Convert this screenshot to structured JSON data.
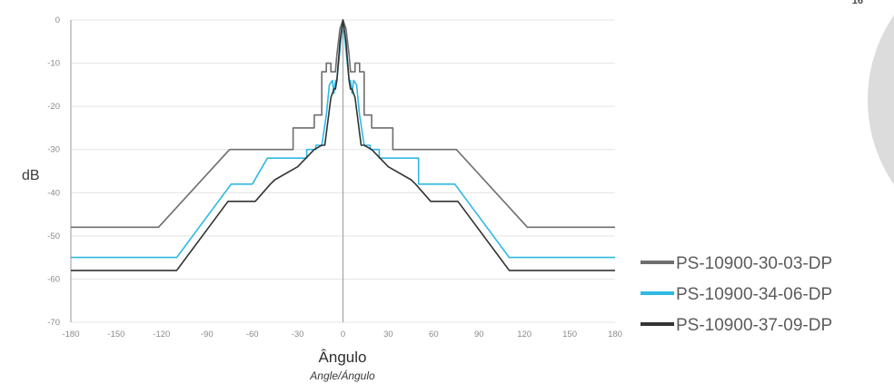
{
  "corner_tag": "16",
  "colors": {
    "series_1": "#6e6e6e",
    "series_2": "#2fb9e3",
    "series_3": "#333333",
    "grid": "#e4e4e4",
    "axis": "#9a9a9a",
    "decor_circle": "#dcdcdc"
  },
  "chart_data": {
    "type": "line",
    "title": "",
    "xlabel": "Ângulo",
    "xlabel_sub": "Angle/Ángulo",
    "ylabel": "dB",
    "xlim": [
      -180,
      180
    ],
    "ylim": [
      -70,
      0
    ],
    "xticks": [
      "-180",
      "-150",
      "-120",
      "-90",
      "-60",
      "-30",
      "0",
      "30",
      "60",
      "90",
      "120",
      "150",
      "180"
    ],
    "yticks": [
      "0",
      "-10",
      "-20",
      "-30",
      "-40",
      "-50",
      "-60",
      "-70"
    ],
    "grid": "horizontal",
    "legend_position": "right",
    "series": [
      {
        "name": "PS-10900-30-03-DP",
        "x": [
          -180,
          -122,
          -75,
          -33,
          -33,
          -24,
          -24,
          -19,
          -19,
          -14,
          -14,
          -11,
          -11,
          -8,
          -8,
          -5,
          -4,
          -2,
          0,
          2,
          4,
          5,
          8,
          8,
          11,
          11,
          14,
          14,
          19,
          19,
          24,
          24,
          33,
          33,
          75,
          122,
          180
        ],
        "y": [
          -48,
          -48,
          -30,
          -30,
          -25,
          -25,
          -25,
          -25,
          -22,
          -22,
          -12,
          -12,
          -10,
          -10,
          -12,
          -12,
          -8,
          -2,
          0,
          -2,
          -8,
          -12,
          -12,
          -10,
          -10,
          -12,
          -12,
          -22,
          -22,
          -25,
          -25,
          -25,
          -25,
          -30,
          -30,
          -48,
          -48
        ]
      },
      {
        "name": "PS-10900-34-06-DP",
        "x": [
          -180,
          -110,
          -74,
          -60,
          -60,
          -50,
          -50,
          -24,
          -24,
          -18,
          -18,
          -14,
          -11,
          -9,
          -7,
          -6,
          -5,
          -4,
          -2,
          0,
          2,
          4,
          5,
          6,
          7,
          9,
          11,
          14,
          18,
          18,
          24,
          24,
          50,
          50,
          60,
          60,
          74,
          110,
          180
        ],
        "y": [
          -55,
          -55,
          -38,
          -38,
          -38,
          -32,
          -32,
          -32,
          -30,
          -30,
          -29,
          -29,
          -22,
          -15,
          -14,
          -17,
          -14,
          -14,
          -7,
          0,
          -7,
          -14,
          -14,
          -17,
          -14,
          -15,
          -22,
          -29,
          -29,
          -30,
          -30,
          -32,
          -32,
          -38,
          -38,
          -38,
          -38,
          -55,
          -55
        ]
      },
      {
        "name": "PS-10900-37-09-DP",
        "x": [
          -180,
          -110,
          -76,
          -60,
          -58,
          -48,
          -45,
          -30,
          -19,
          -14,
          -12,
          -8,
          -6,
          -5,
          -4,
          -2,
          0,
          2,
          4,
          5,
          6,
          8,
          12,
          14,
          19,
          30,
          45,
          48,
          58,
          60,
          76,
          110,
          180
        ],
        "y": [
          -58,
          -58,
          -42,
          -42,
          -42,
          -38,
          -37,
          -34,
          -30,
          -29,
          -29,
          -18,
          -16,
          -16,
          -14,
          -5,
          0,
          -5,
          -14,
          -16,
          -16,
          -18,
          -29,
          -29,
          -30,
          -34,
          -37,
          -38,
          -42,
          -42,
          -42,
          -58,
          -58
        ]
      }
    ]
  }
}
